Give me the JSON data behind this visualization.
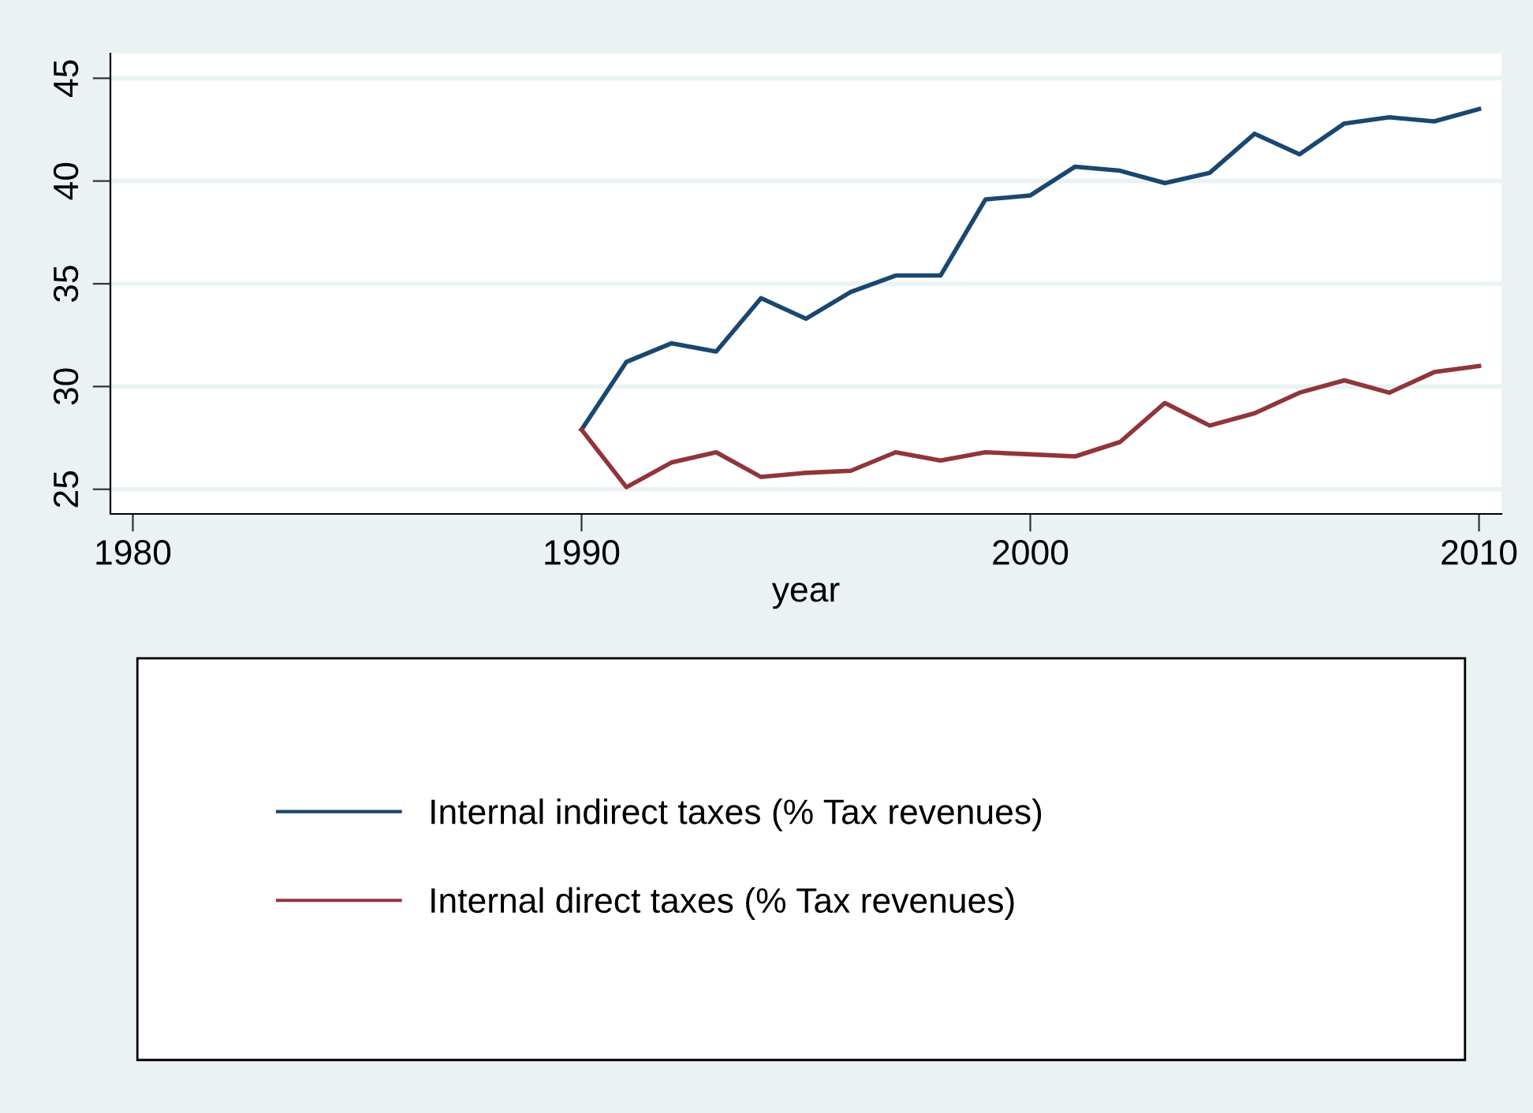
{
  "chart_data": {
    "type": "line",
    "xlabel": "year",
    "x": [
      1990,
      1991,
      1992,
      1993,
      1994,
      1995,
      1996,
      1997,
      1998,
      1999,
      2000,
      2001,
      2002,
      2003,
      2004,
      2005,
      2006,
      2007,
      2008,
      2009,
      2010
    ],
    "series": [
      {
        "name": "Internal indirect taxes (% Tax revenues)",
        "color": "#1a476f",
        "values": [
          27.9,
          31.2,
          32.1,
          31.7,
          34.3,
          33.3,
          34.6,
          35.4,
          35.4,
          39.1,
          39.3,
          40.7,
          40.5,
          39.9,
          40.4,
          42.3,
          41.3,
          42.8,
          43.1,
          42.9,
          43.5
        ]
      },
      {
        "name": "Internal direct taxes (% Tax revenues)",
        "color": "#90353b",
        "values": [
          27.9,
          25.1,
          26.3,
          26.8,
          25.6,
          25.8,
          25.9,
          26.8,
          26.4,
          26.8,
          26.7,
          26.6,
          27.3,
          29.2,
          28.1,
          28.7,
          29.7,
          30.3,
          29.7,
          30.7,
          31.0
        ]
      }
    ],
    "xlim": [
      1979.5,
      2010.5
    ],
    "xticks": [
      1980,
      1990,
      2000,
      2010
    ],
    "ylim": [
      23.8,
      46.2
    ],
    "yticks": [
      25,
      30,
      35,
      40,
      45
    ],
    "grid": "y",
    "legend": "bottom",
    "marker": "none",
    "line_style": "solid"
  }
}
